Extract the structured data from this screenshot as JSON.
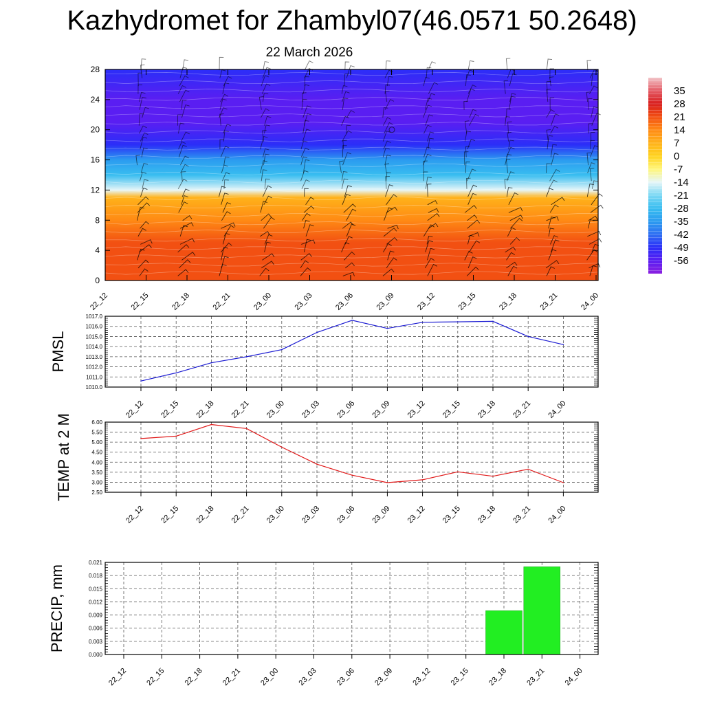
{
  "title": "Kazhydromet for Zhambyl07(46.0571 50.2648)",
  "subtitle": "22 March 2026",
  "time_labels": [
    "22_12",
    "22_15",
    "22_18",
    "22_21",
    "23_00",
    "23_03",
    "23_06",
    "23_09",
    "23_12",
    "23_15",
    "23_18",
    "23_21",
    "24_00"
  ],
  "chart_data": [
    {
      "type": "heatmap",
      "name": "cross-section",
      "description_variable": "temperature with wind barbs",
      "x": [
        "22_12",
        "22_15",
        "22_18",
        "22_21",
        "23_00",
        "23_03",
        "23_06",
        "23_09",
        "23_12",
        "23_15",
        "23_18",
        "23_21",
        "24_00"
      ],
      "ylim": [
        0,
        28
      ],
      "yticks": [
        0,
        4,
        8,
        12,
        16,
        20,
        24,
        28
      ],
      "colorbar_ticks": [
        35,
        28,
        21,
        14,
        7,
        0,
        -7,
        -14,
        -21,
        -28,
        -35,
        -42,
        -49,
        -56
      ],
      "colorbar_range": [
        -63,
        42
      ],
      "temperature_profile": [
        {
          "level": 0,
          "value": 18
        },
        {
          "level": 3,
          "value": 21
        },
        {
          "level": 5,
          "value": 19
        },
        {
          "level": 8,
          "value": 13
        },
        {
          "level": 11,
          "value": 6
        },
        {
          "level": 12,
          "value": -13
        },
        {
          "level": 14,
          "value": -26
        },
        {
          "level": 16,
          "value": -38
        },
        {
          "level": 18,
          "value": -50
        },
        {
          "level": 21,
          "value": -58
        },
        {
          "level": 24,
          "value": -55
        },
        {
          "level": 28,
          "value": -52
        }
      ],
      "colorscale": [
        {
          "value": -63,
          "color": "#8a1fe0"
        },
        {
          "value": -56,
          "color": "#5a1ef2"
        },
        {
          "value": -49,
          "color": "#2b2ef8"
        },
        {
          "value": -42,
          "color": "#2f6ff2"
        },
        {
          "value": -35,
          "color": "#2b9bf0"
        },
        {
          "value": -28,
          "color": "#38bdf0"
        },
        {
          "value": -21,
          "color": "#7ad8f4"
        },
        {
          "value": -14,
          "color": "#e6f6f8"
        },
        {
          "value": -7,
          "color": "#fff67a"
        },
        {
          "value": 0,
          "color": "#ffd21e"
        },
        {
          "value": 7,
          "color": "#ffb21a"
        },
        {
          "value": 14,
          "color": "#ff8a14"
        },
        {
          "value": 21,
          "color": "#f25012"
        },
        {
          "value": 28,
          "color": "#d81e1e"
        },
        {
          "value": 35,
          "color": "#e45a64"
        },
        {
          "value": 42,
          "color": "#f2c4c8"
        }
      ]
    },
    {
      "type": "line",
      "name": "pmsl",
      "ylabel": "PMSL",
      "x": [
        "22_12",
        "22_15",
        "22_18",
        "22_21",
        "23_00",
        "23_03",
        "23_06",
        "23_09",
        "23_12",
        "23_15",
        "23_18",
        "23_21",
        "24_00"
      ],
      "values": [
        1010.6,
        1011.4,
        1012.4,
        1013.0,
        1013.7,
        1015.4,
        1016.6,
        1015.8,
        1016.4,
        1016.45,
        1016.5,
        1015.0,
        1014.2
      ],
      "ylim": [
        1010.0,
        1017.0
      ],
      "yticks": [
        "1010.0",
        "1011.0",
        "1012.0",
        "1013.0",
        "1014.0",
        "1015.0",
        "1016.0",
        "1017.0"
      ],
      "color": "#1a1ad2"
    },
    {
      "type": "line",
      "name": "temp2m",
      "ylabel": "TEMP at 2 M",
      "x": [
        "22_12",
        "22_15",
        "22_18",
        "22_21",
        "23_00",
        "23_03",
        "23_06",
        "23_09",
        "23_12",
        "23_15",
        "23_18",
        "23_21",
        "24_00"
      ],
      "values": [
        5.18,
        5.3,
        5.88,
        5.68,
        4.75,
        3.9,
        3.35,
        2.98,
        3.12,
        3.52,
        3.3,
        3.65,
        2.98
      ],
      "ylim": [
        2.5,
        6.0
      ],
      "yticks": [
        "2.50",
        "3.00",
        "3.50",
        "4.00",
        "4.50",
        "5.00",
        "5.50",
        "6.00"
      ],
      "color": "#e01818"
    },
    {
      "type": "bar",
      "name": "precip",
      "ylabel": "PRECIP, mm",
      "categories": [
        "22_12",
        "22_15",
        "22_18",
        "22_21",
        "23_00",
        "23_03",
        "23_06",
        "23_09",
        "23_12",
        "23_15",
        "23_18",
        "23_21",
        "24_00"
      ],
      "values": [
        0,
        0,
        0,
        0,
        0,
        0,
        0,
        0,
        0,
        0,
        0.01,
        0.02,
        0
      ],
      "ylim": [
        0,
        0.021
      ],
      "yticks": [
        "0.000",
        "0.003",
        "0.006",
        "0.009",
        "0.012",
        "0.015",
        "0.018",
        "0.021"
      ],
      "color": "#22ee22"
    }
  ]
}
